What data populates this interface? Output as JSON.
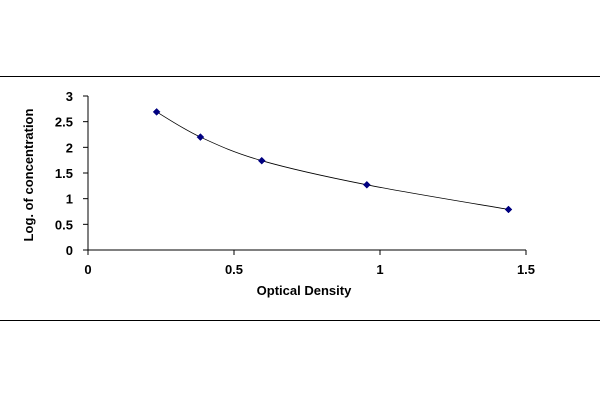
{
  "chart_data": {
    "type": "scatter",
    "title": "",
    "xlabel": "Optical Density",
    "ylabel": "Log. of concentration",
    "xlim": [
      0,
      1.5
    ],
    "ylim": [
      0,
      3
    ],
    "xticks": [
      "0",
      "0.5",
      "1",
      "1.5"
    ],
    "yticks": [
      "0",
      "0.5",
      "1",
      "1.5",
      "2",
      "2.5",
      "3"
    ],
    "grid": false,
    "legend": "none",
    "series": [
      {
        "x": [
          0.235,
          0.385,
          0.595,
          0.955,
          1.44
        ],
        "y": [
          2.69,
          2.2,
          1.74,
          1.27,
          0.79
        ],
        "marker": "diamond",
        "color": "#000080",
        "fit_line": "smooth"
      }
    ]
  }
}
